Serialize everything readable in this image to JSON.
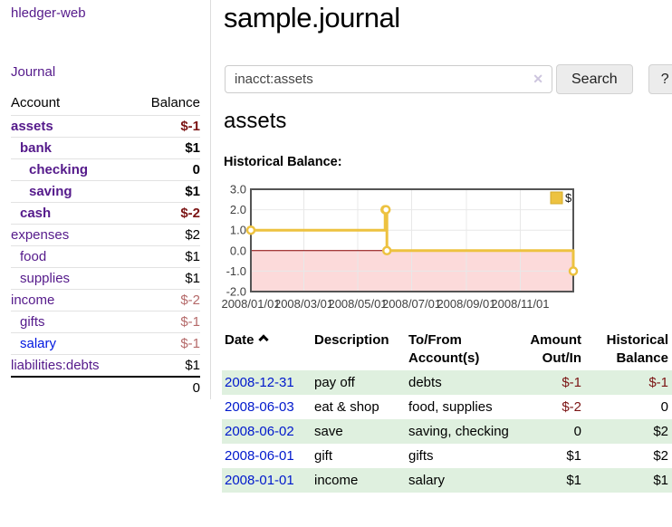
{
  "sidebar": {
    "brand": "hledger-web",
    "nav": {
      "journal_label": "Journal"
    },
    "accounts_table": {
      "headers": {
        "account": "Account",
        "balance": "Balance"
      },
      "rows": [
        {
          "name": "assets",
          "balance": "$-1",
          "level": 0,
          "bold": true
        },
        {
          "name": "bank",
          "balance": "$1",
          "level": 1,
          "bold": true
        },
        {
          "name": "checking",
          "balance": "0",
          "level": 2,
          "bold": true
        },
        {
          "name": "saving",
          "balance": "$1",
          "level": 2,
          "bold": true
        },
        {
          "name": "cash",
          "balance": "$-2",
          "level": 1,
          "bold": true
        },
        {
          "name": "expenses",
          "balance": "$2",
          "level": 0,
          "bold": false
        },
        {
          "name": "food",
          "balance": "$1",
          "level": 1,
          "bold": false
        },
        {
          "name": "supplies",
          "balance": "$1",
          "level": 1,
          "bold": false
        },
        {
          "name": "income",
          "balance": "$-2",
          "level": 0,
          "bold": false
        },
        {
          "name": "gifts",
          "balance": "$-1",
          "level": 1,
          "bold": false
        },
        {
          "name": "salary",
          "balance": "$-1",
          "level": 1,
          "bold": false,
          "unvisited": true
        },
        {
          "name": "liabilities:debts",
          "balance": "$1",
          "level": 0,
          "bold": false
        }
      ],
      "total": "0"
    }
  },
  "header": {
    "title": "sample.journal"
  },
  "search": {
    "value": "inacct:assets",
    "clear_icon": "✕",
    "button_label": "Search",
    "help_label": "?"
  },
  "account_page": {
    "heading": "assets",
    "chart_label": "Historical Balance:"
  },
  "chart_data": {
    "type": "line",
    "title": "Historical Balance",
    "step": true,
    "xlim": [
      "2008-01-01",
      "2008-12-31"
    ],
    "ylim": [
      -2,
      3
    ],
    "series": [
      {
        "name": "$",
        "color": "#edc240",
        "points": [
          [
            "2008-01-01",
            1
          ],
          [
            "2008-06-01",
            2
          ],
          [
            "2008-06-02",
            2
          ],
          [
            "2008-06-03",
            0
          ],
          [
            "2008-12-31",
            -1
          ]
        ]
      }
    ],
    "yticks": [
      {
        "v": 3,
        "label": "3.0"
      },
      {
        "v": 2,
        "label": "2.0"
      },
      {
        "v": 1,
        "label": "1.0"
      },
      {
        "v": 0,
        "label": "0.0"
      },
      {
        "v": -1,
        "label": "-1.0"
      },
      {
        "v": -2,
        "label": "-2.0"
      }
    ],
    "xticks": [
      {
        "v": "2008-01-01",
        "label": "2008/01/01"
      },
      {
        "v": "2008-03-01",
        "label": "2008/03/01"
      },
      {
        "v": "2008-05-01",
        "label": "2008/05/01"
      },
      {
        "v": "2008-07-01",
        "label": "2008/07/01"
      },
      {
        "v": "2008-09-01",
        "label": "2008/09/01"
      },
      {
        "v": "2008-11-01",
        "label": "2008/11/01"
      }
    ],
    "legend": {
      "label": "$",
      "position": "top-right"
    },
    "grid": true,
    "colors": {
      "negative_region": "#fcdada",
      "zero_line": "#8b0000",
      "gridline": "#e8e8e8",
      "border": "#545454"
    }
  },
  "register": {
    "headers": {
      "date": "Date",
      "description": "Description",
      "accounts": "To/From Account(s)",
      "amount": "Amount Out/In",
      "balance": "Historical Balance"
    },
    "rows": [
      {
        "date": "2008-12-31",
        "description": "pay off",
        "accounts": "debts",
        "amount": "$-1",
        "balance": "$-1"
      },
      {
        "date": "2008-06-03",
        "description": "eat & shop",
        "accounts": "food, supplies",
        "amount": "$-2",
        "balance": "0"
      },
      {
        "date": "2008-06-02",
        "description": "save",
        "accounts": "saving, checking",
        "amount": "0",
        "balance": "$2"
      },
      {
        "date": "2008-06-01",
        "description": "gift",
        "accounts": "gifts",
        "amount": "$1",
        "balance": "$2"
      },
      {
        "date": "2008-01-01",
        "description": "income",
        "accounts": "salary",
        "amount": "$1",
        "balance": "$1"
      }
    ]
  },
  "colors": {
    "link_visited_purple": "#551a8b",
    "link_blue": "#0018cc",
    "negative": "#7b1414",
    "negative_muted": "#b56a6a",
    "row_stripe_green": "#dff0df",
    "series_gold": "#edc240"
  }
}
